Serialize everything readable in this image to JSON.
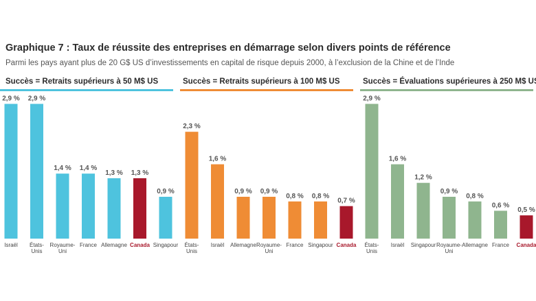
{
  "title": "Graphique 7 : Taux de réussite des entreprises en démarrage selon divers points de référence",
  "subtitle": "Parmi les pays ayant plus de 20 G$ US d’investissements en capital de risque depuis 2000, à l’exclusion de la Chine et de l’Inde",
  "colors": {
    "highlight": "#a8182b",
    "panel_1": "#4ec3de",
    "panel_2": "#ef8c35",
    "panel_3": "#8fb58e"
  },
  "chart_data": [
    {
      "type": "bar",
      "title": "Succès = Retraits supérieurs à 50 M$ US",
      "color": "#4ec3de",
      "highlight_category": "Canada",
      "categories": [
        "Israël",
        "États-Unis",
        "Royaume-Uni",
        "France",
        "Allemagne",
        "Canada",
        "Singapour"
      ],
      "category_lines": [
        [
          "Israël"
        ],
        [
          "États-",
          "Unis"
        ],
        [
          "Royaume-",
          "Uni"
        ],
        [
          "France"
        ],
        [
          "Allemagne"
        ],
        [
          "Canada"
        ],
        [
          "Singapour"
        ]
      ],
      "values": [
        2.9,
        2.9,
        1.4,
        1.4,
        1.3,
        1.3,
        0.9
      ],
      "value_labels": [
        "2,9 %",
        "2,9 %",
        "1,4 %",
        "1,4 %",
        "1,3 %",
        "1,3 %",
        "0,9 %"
      ],
      "ylim": [
        0,
        3.1
      ],
      "grid": false
    },
    {
      "type": "bar",
      "title": "Succès = Retraits supérieurs à 100 M$ US",
      "color": "#ef8c35",
      "highlight_category": "Canada",
      "categories": [
        "États-Unis",
        "Israël",
        "Allemagne",
        "Royaume-Uni",
        "France",
        "Singapour",
        "Canada"
      ],
      "category_lines": [
        [
          "États-",
          "Unis"
        ],
        [
          "Israël"
        ],
        [
          "Allemagne"
        ],
        [
          "Royaume-",
          "Uni"
        ],
        [
          "France"
        ],
        [
          "Singapour"
        ],
        [
          "Canada"
        ]
      ],
      "values": [
        2.3,
        1.6,
        0.9,
        0.9,
        0.8,
        0.8,
        0.7
      ],
      "value_labels": [
        "2,3 %",
        "1,6 %",
        "0,9 %",
        "0,9 %",
        "0,8 %",
        "0,8 %",
        "0,7 %"
      ],
      "ylim": [
        0,
        3.1
      ],
      "grid": false
    },
    {
      "type": "bar",
      "title": "Succès = Évaluations supérieures à 250 M$ US",
      "color": "#8fb58e",
      "highlight_category": "Canada",
      "categories": [
        "États-Unis",
        "Israël",
        "Singapour",
        "Royaume-Uni",
        "Allemagne",
        "France",
        "Canada"
      ],
      "category_lines": [
        [
          "États-",
          "Unis"
        ],
        [
          "Israël"
        ],
        [
          "Singapour"
        ],
        [
          "Royaume-",
          "Uni"
        ],
        [
          "Allemagne"
        ],
        [
          "France"
        ],
        [
          "Canada"
        ]
      ],
      "values": [
        2.9,
        1.6,
        1.2,
        0.9,
        0.8,
        0.6,
        0.5
      ],
      "value_labels": [
        "2,9 %",
        "1,6 %",
        "1,2 %",
        "0,9 %",
        "0,8 %",
        "0,6 %",
        "0,5 %"
      ],
      "ylim": [
        0,
        3.1
      ],
      "grid": false
    }
  ]
}
